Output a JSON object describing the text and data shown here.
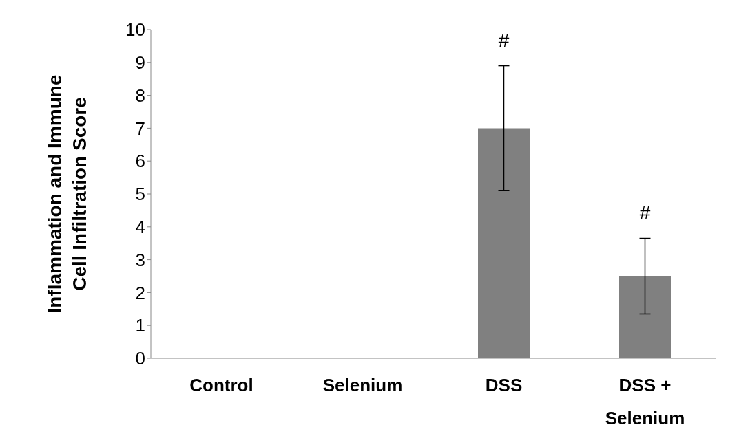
{
  "chart_data": {
    "type": "bar",
    "ylabel": "Inflammation and Immune Cell Infiltration Score",
    "categories": [
      "Control",
      "Selenium",
      "DSS",
      "DSS + Selenium"
    ],
    "values": [
      0,
      0,
      7.0,
      2.5
    ],
    "errors": [
      null,
      null,
      1.9,
      1.15
    ],
    "color": "#808080",
    "ylim": [
      0,
      10
    ],
    "yticks": [
      0,
      1,
      2,
      3,
      4,
      5,
      6,
      7,
      8,
      9,
      10
    ],
    "grid": false,
    "legend": false,
    "annotations": [
      "#",
      "#"
    ]
  }
}
